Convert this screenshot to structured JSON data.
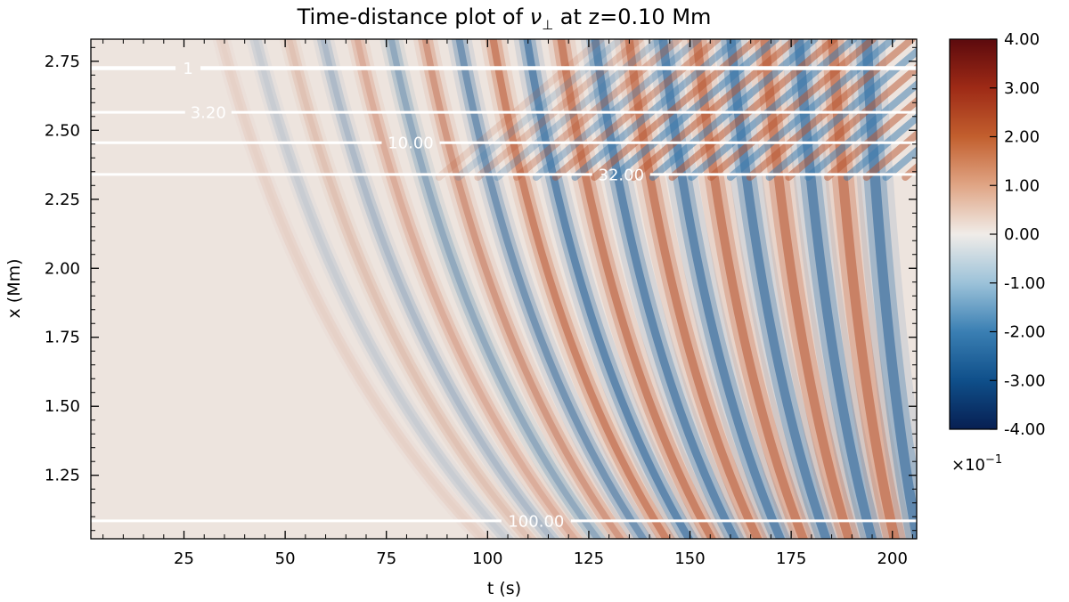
{
  "chart_data": {
    "type": "heatmap",
    "title_prefix": "Time-distance plot of ",
    "title_symbol": "ν",
    "title_symbol_sub": "⊥",
    "title_suffix": " at z=0.10 Mm",
    "xlabel": "t (s)",
    "ylabel": "x (Mm)",
    "xlim": [
      2,
      206
    ],
    "ylim": [
      1.02,
      2.83
    ],
    "x_ticks": [
      25,
      50,
      75,
      100,
      125,
      150,
      175,
      200
    ],
    "x_tick_labels": [
      "25",
      "50",
      "75",
      "100",
      "125",
      "150",
      "175",
      "200"
    ],
    "y_ticks": [
      1.25,
      1.5,
      1.75,
      2.0,
      2.25,
      2.5,
      2.75
    ],
    "y_tick_labels": [
      "1.25",
      "1.50",
      "1.75",
      "2.00",
      "2.25",
      "2.50",
      "2.75"
    ],
    "colorbar": {
      "vmin": -4.0,
      "vmax": 4.0,
      "ticks": [
        4,
        3,
        2,
        1,
        0,
        -1,
        -2,
        -3,
        -4
      ],
      "tick_labels": [
        "4.00",
        "3.00",
        "2.00",
        "1.00",
        "0.00",
        "-1.00",
        "-2.00",
        "-3.00",
        "-4.00"
      ],
      "multiplier_base": "×10",
      "multiplier_exp": "−1",
      "colormap": "blue-white-red diverging",
      "color_low": "#0a2a66",
      "color_mid": "#f0ece8",
      "color_high": "#6a0f0f"
    },
    "contours": [
      {
        "label": "1",
        "x_level": 2.725,
        "label_t": 26
      },
      {
        "label": "3.20",
        "x_level": 2.565,
        "label_t": 31
      },
      {
        "label": "10.00",
        "x_level": 2.455,
        "label_t": 81
      },
      {
        "label": "32.00",
        "x_level": 2.34,
        "label_t": 133
      },
      {
        "label": "100.00",
        "x_level": 1.085,
        "label_t": 112
      }
    ],
    "grid": false
  }
}
